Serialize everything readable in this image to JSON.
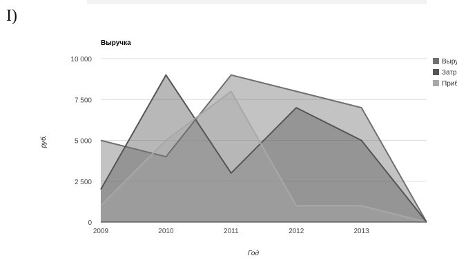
{
  "panel_label": "I)",
  "chart_data": {
    "type": "area",
    "title": "Выручка",
    "xlabel": "Год",
    "ylabel": "руб.",
    "x": [
      "2009",
      "2010",
      "2011",
      "2012",
      "2013",
      "2014"
    ],
    "x_tick_labels": [
      "2009",
      "2010",
      "2011",
      "2012",
      "2013"
    ],
    "ylim": [
      0,
      10000
    ],
    "y_ticks": [
      {
        "value": 0,
        "label": "0"
      },
      {
        "value": 2500,
        "label": "2 500"
      },
      {
        "value": 5000,
        "label": "5 000"
      },
      {
        "value": 7500,
        "label": "7 500"
      },
      {
        "value": 10000,
        "label": "10 000"
      }
    ],
    "grid": true,
    "legend_position": "right",
    "series": [
      {
        "name": "Выручка",
        "values": [
          5000,
          4000,
          9000,
          8000,
          7000,
          0
        ],
        "color": "#707070"
      },
      {
        "name": "Затраты",
        "values": [
          2000,
          9000,
          3000,
          7000,
          5000,
          0
        ],
        "color": "#555555"
      },
      {
        "name": "Прибыль",
        "values": [
          1000,
          5000,
          8000,
          1000,
          1000,
          0
        ],
        "color": "#a8a8a8"
      }
    ]
  }
}
